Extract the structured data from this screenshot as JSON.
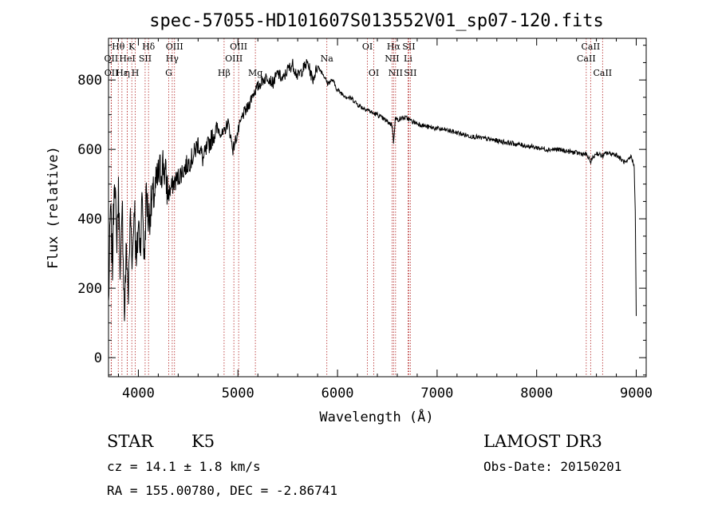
{
  "chart_data": {
    "type": "line",
    "title": "spec-57055-HD101607S013552V01_sp07-120.fits",
    "xlabel": "Wavelength (Å)",
    "ylabel": "Flux (relative)",
    "xlim": [
      3700,
      9100
    ],
    "ylim": [
      -55,
      920
    ],
    "x_ticks": [
      4000,
      5000,
      6000,
      7000,
      8000,
      9000
    ],
    "x_tick_labels": [
      "4000",
      "5000",
      "6000",
      "7000",
      "8000",
      "9000"
    ],
    "y_ticks": [
      0,
      200,
      400,
      600,
      800
    ],
    "y_tick_labels": [
      "0",
      "200",
      "400",
      "600",
      "800"
    ],
    "grid": false,
    "series": [
      {
        "name": "flux",
        "x": [
          3700,
          3720,
          3740,
          3760,
          3780,
          3800,
          3820,
          3840,
          3860,
          3880,
          3900,
          3920,
          3940,
          3960,
          3980,
          4000,
          4020,
          4040,
          4060,
          4080,
          4100,
          4150,
          4200,
          4250,
          4300,
          4350,
          4400,
          4450,
          4500,
          4550,
          4600,
          4650,
          4700,
          4750,
          4800,
          4850,
          4900,
          4950,
          5000,
          5050,
          5100,
          5150,
          5200,
          5250,
          5300,
          5350,
          5400,
          5450,
          5500,
          5550,
          5600,
          5650,
          5700,
          5750,
          5800,
          5850,
          5900,
          5950,
          6000,
          6050,
          6100,
          6150,
          6200,
          6250,
          6300,
          6350,
          6400,
          6450,
          6500,
          6550,
          6562,
          6580,
          6600,
          6650,
          6700,
          6750,
          6800,
          6900,
          7000,
          7100,
          7200,
          7300,
          7400,
          7500,
          7600,
          7700,
          7800,
          7900,
          8000,
          8100,
          8200,
          8300,
          8400,
          8500,
          8540,
          8600,
          8662,
          8700,
          8800,
          8850,
          8900,
          8950,
          8980,
          8990,
          9000
        ],
        "y": [
          150,
          430,
          260,
          560,
          330,
          470,
          240,
          420,
          120,
          320,
          180,
          420,
          280,
          460,
          250,
          390,
          330,
          470,
          270,
          480,
          400,
          460,
          520,
          560,
          470,
          500,
          520,
          540,
          560,
          580,
          620,
          570,
          610,
          640,
          660,
          640,
          680,
          600,
          650,
          700,
          720,
          760,
          780,
          800,
          810,
          790,
          820,
          800,
          830,
          845,
          810,
          830,
          850,
          800,
          840,
          820,
          790,
          800,
          770,
          760,
          750,
          745,
          730,
          720,
          715,
          705,
          700,
          690,
          680,
          670,
          620,
          690,
          685,
          690,
          690,
          680,
          675,
          665,
          660,
          655,
          648,
          640,
          635,
          630,
          625,
          620,
          615,
          610,
          605,
          600,
          600,
          595,
          590,
          585,
          565,
          590,
          580,
          590,
          585,
          570,
          560,
          580,
          550,
          420,
          120
        ]
      }
    ],
    "line_markers": [
      {
        "label": "Hθ",
        "x": 3798,
        "row": 1
      },
      {
        "label": "OII",
        "x": 3727,
        "row": 2
      },
      {
        "label": "OII",
        "x": 3729,
        "row": 3
      },
      {
        "label": "Hε",
        "x": 3835,
        "row": 3
      },
      {
        "label": "HeI",
        "x": 3889,
        "row": 2
      },
      {
        "label": "K",
        "x": 3934,
        "row": 1
      },
      {
        "label": "η",
        "x": 3889,
        "row": 3
      },
      {
        "label": "H",
        "x": 3969,
        "row": 3
      },
      {
        "label": "Hδ",
        "x": 4102,
        "row": 1
      },
      {
        "label": "SII",
        "x": 4068,
        "row": 2
      },
      {
        "label": "OIII",
        "x": 4363,
        "row": 1
      },
      {
        "label": "Hγ",
        "x": 4340,
        "row": 2
      },
      {
        "label": "G",
        "x": 4305,
        "row": 3
      },
      {
        "label": "Hβ",
        "x": 4861,
        "row": 3
      },
      {
        "label": "OIII",
        "x": 5007,
        "row": 1
      },
      {
        "label": "OIII",
        "x": 4959,
        "row": 2
      },
      {
        "label": "Mg",
        "x": 5175,
        "row": 3
      },
      {
        "label": "Na",
        "x": 5893,
        "row": 2
      },
      {
        "label": "OI",
        "x": 6300,
        "row": 1
      },
      {
        "label": "OI",
        "x": 6364,
        "row": 3
      },
      {
        "label": "Hα",
        "x": 6563,
        "row": 1
      },
      {
        "label": "SII",
        "x": 6716,
        "row": 1
      },
      {
        "label": "NII",
        "x": 6548,
        "row": 2
      },
      {
        "label": "Li",
        "x": 6708,
        "row": 2
      },
      {
        "label": "NII",
        "x": 6583,
        "row": 3
      },
      {
        "label": "SII",
        "x": 6731,
        "row": 3
      },
      {
        "label": "CaII",
        "x": 8542,
        "row": 1
      },
      {
        "label": "CaII",
        "x": 8498,
        "row": 2
      },
      {
        "label": "CaII",
        "x": 8662,
        "row": 3
      }
    ]
  },
  "info": {
    "object_class": "STAR",
    "subclass": "K5",
    "survey": "LAMOST DR3",
    "redshift": "cz = 14.1 ± 1.8 km/s",
    "obs_date": "Obs-Date: 20150201",
    "coords": "RA = 155.00780, DEC =  -2.86741"
  },
  "colors": {
    "line": "#000000",
    "marker": "#b22222",
    "axis": "#000000"
  }
}
